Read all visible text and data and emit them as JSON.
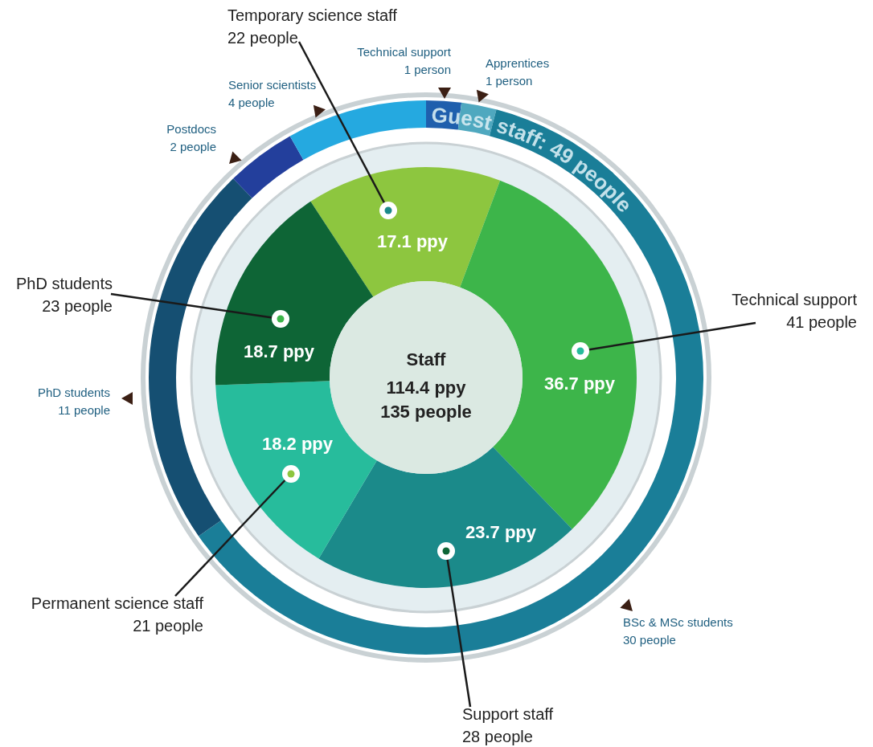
{
  "chart_data": [
    {
      "type": "donut",
      "title": "Guest staff:  49 people",
      "categories": [
        "Technical support",
        "Apprentices",
        "BSc & MSc students",
        "PhD students",
        "Postdocs",
        "Senior scientists"
      ],
      "values": [
        1,
        1,
        30,
        11,
        2,
        4
      ],
      "colors": [
        "#1f5fad",
        "#4fa8bf",
        "#1a7e98",
        "#154f72",
        "#233f9c",
        "#25a9e0"
      ],
      "value_labels": [
        "1 person",
        "1 person",
        "30 people",
        "11 people",
        "2 people",
        "4 people"
      ]
    },
    {
      "type": "donut",
      "title": "Staff",
      "categories": [
        "Temporary science staff",
        "Technical support",
        "Support staff",
        "Permanent science staff",
        "PhD students"
      ],
      "values": [
        17.1,
        36.7,
        23.7,
        18.2,
        18.7
      ],
      "colors": [
        "#8dc63f",
        "#3db54a",
        "#1b8a8a",
        "#27bc9c",
        "#0e6536"
      ],
      "value_labels": [
        "17.1 ppy",
        "36.7 ppy",
        "23.7 ppy",
        "18.2 ppy",
        "18.7 ppy"
      ],
      "annotations": [
        {
          "text": "22 people",
          "x": "Temporary science staff"
        },
        {
          "text": "41 people",
          "x": "Technical support"
        },
        {
          "text": "28 people",
          "x": "Support staff"
        },
        {
          "text": "21 people",
          "x": "Permanent science staff"
        },
        {
          "text": "23 people",
          "x": "PhD students"
        },
        "114.4 ppy",
        "135 people"
      ]
    }
  ]
}
